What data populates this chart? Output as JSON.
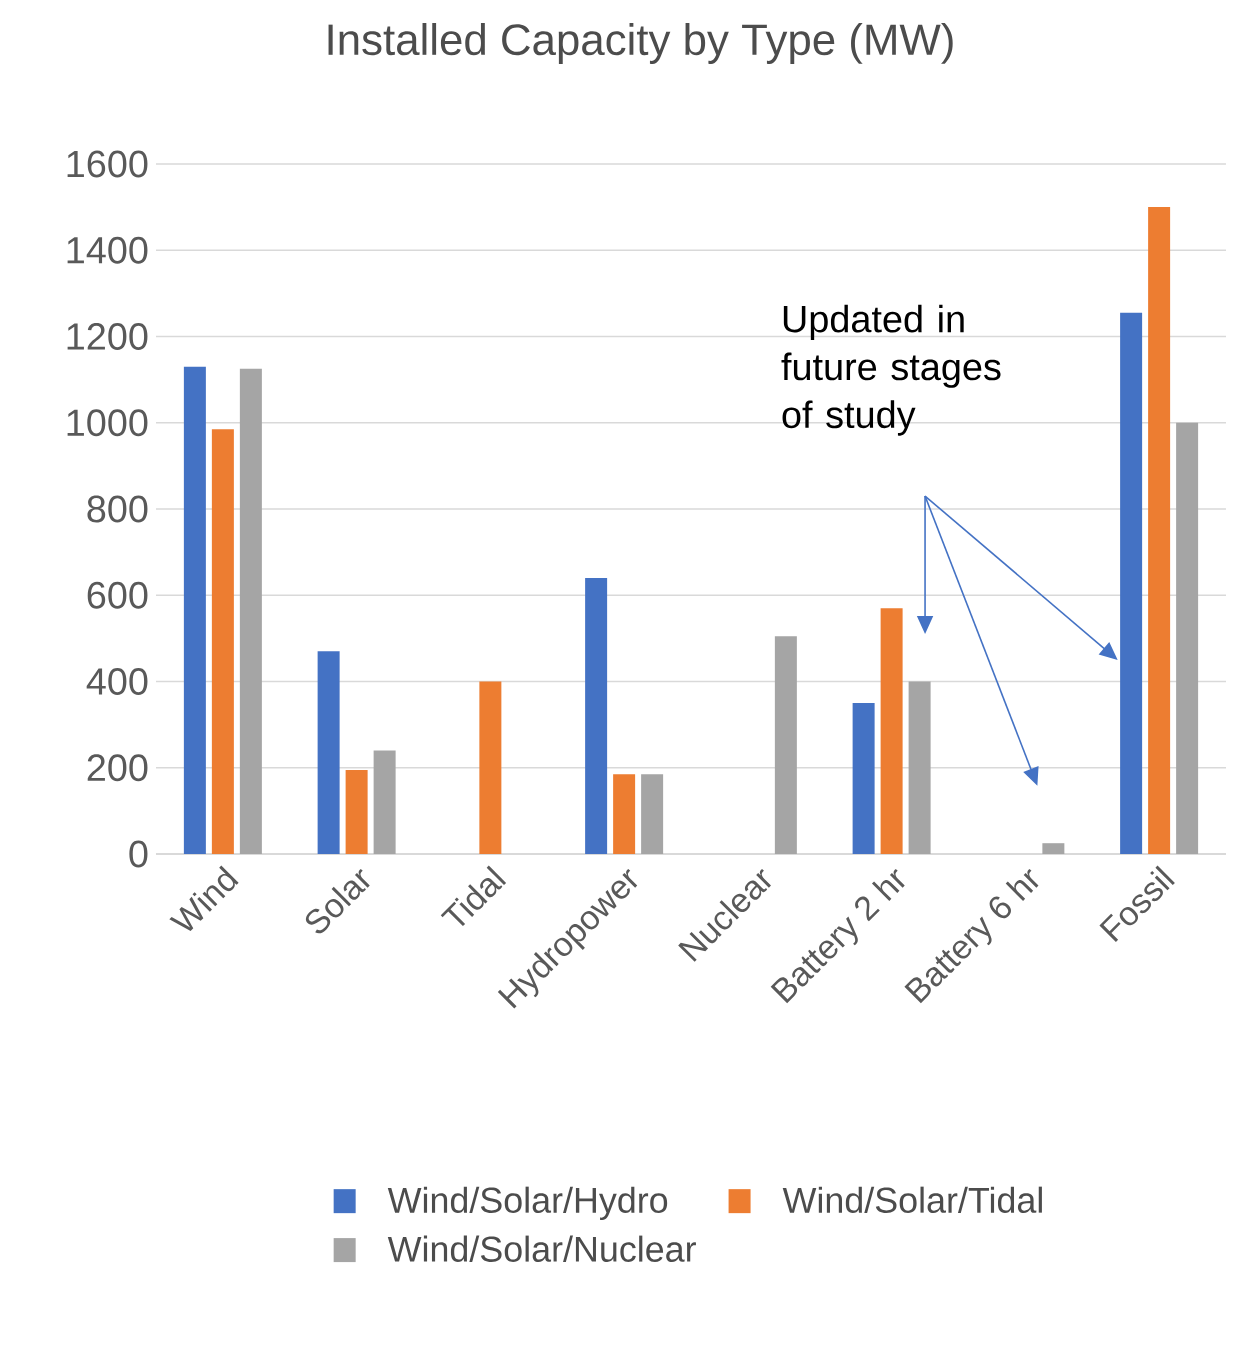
{
  "chart_data": {
    "type": "bar",
    "title": "Installed Capacity by Type (MW)",
    "categories": [
      "Wind",
      "Solar",
      "Tidal",
      "Hydropower",
      "Nuclear",
      "Battery 2 hr",
      "Battery 6 hr",
      "Fossil"
    ],
    "series": [
      {
        "name": "Wind/Solar/Hydro",
        "color": "#4472c4",
        "values": [
          1130,
          470,
          null,
          640,
          null,
          350,
          null,
          1255
        ]
      },
      {
        "name": "Wind/Solar/Tidal",
        "color": "#ed7d31",
        "values": [
          985,
          195,
          400,
          185,
          null,
          570,
          null,
          1500
        ]
      },
      {
        "name": "Wind/Solar/Nuclear",
        "color": "#a5a5a5",
        "values": [
          1125,
          240,
          null,
          185,
          505,
          400,
          25,
          1000
        ]
      }
    ],
    "ylim": [
      0,
      1600
    ],
    "yticks": [
      0,
      200,
      400,
      600,
      800,
      1000,
      1200,
      1400,
      1600
    ],
    "grid": "y",
    "legend": "bottom",
    "annotations": [
      "Updated in future stages of study"
    ]
  }
}
